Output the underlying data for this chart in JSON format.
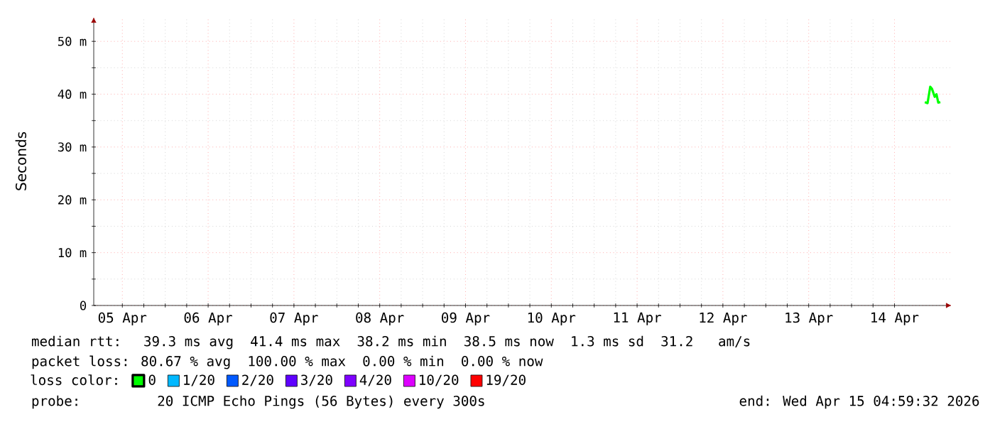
{
  "chart_data": {
    "type": "line",
    "ylabel": "Seconds",
    "x": [
      "2026-04-14T21:30",
      "2026-04-14T22:15",
      "2026-04-14T23:00",
      "2026-04-14T23:30",
      "2026-04-15T00:15",
      "2026-04-15T00:45",
      "2026-04-15T01:15",
      "2026-04-15T01:50"
    ],
    "series": [
      {
        "name": "0",
        "color": "#00ff00",
        "values": [
          38.5,
          38.3,
          41.4,
          41.0,
          39.5,
          40.0,
          38.4,
          38.5
        ]
      },
      {
        "name": "1/20",
        "color": "#00b8ff",
        "values": [
          null,
          null,
          null,
          null,
          null,
          null,
          null,
          null
        ]
      },
      {
        "name": "2/20",
        "color": "#0059ff",
        "values": [
          null,
          null,
          null,
          null,
          null,
          null,
          null,
          null
        ]
      },
      {
        "name": "3/20",
        "color": "#5e00ff",
        "values": [
          null,
          null,
          null,
          null,
          null,
          null,
          null,
          null
        ]
      },
      {
        "name": "4/20",
        "color": "#7e00ff",
        "values": [
          null,
          null,
          null,
          null,
          null,
          null,
          null,
          null
        ]
      },
      {
        "name": "10/20",
        "color": "#dd00ff",
        "values": [
          null,
          null,
          null,
          null,
          null,
          null,
          null,
          null
        ]
      },
      {
        "name": "19/20",
        "color": "#ff0000",
        "values": [
          null,
          null,
          null,
          null,
          null,
          null,
          null,
          null
        ]
      }
    ],
    "legend_title": "loss color:",
    "legend": "bottom",
    "xlim": [
      "2026-04-05T05:00",
      "2026-04-15T05:00"
    ],
    "xticks": [
      {
        "value": "2026-04-05T13:00",
        "label": "05 Apr"
      },
      {
        "value": "2026-04-06T13:00",
        "label": "06 Apr"
      },
      {
        "value": "2026-04-07T13:00",
        "label": "07 Apr"
      },
      {
        "value": "2026-04-08T13:00",
        "label": "08 Apr"
      },
      {
        "value": "2026-04-09T13:00",
        "label": "09 Apr"
      },
      {
        "value": "2026-04-10T13:00",
        "label": "10 Apr"
      },
      {
        "value": "2026-04-11T13:00",
        "label": "11 Apr"
      },
      {
        "value": "2026-04-12T13:00",
        "label": "12 Apr"
      },
      {
        "value": "2026-04-13T13:00",
        "label": "13 Apr"
      },
      {
        "value": "2026-04-14T13:00",
        "label": "14 Apr"
      }
    ],
    "ylim": [
      0,
      54.6
    ],
    "yticks": [
      0,
      {
        "value": 10,
        "label": "10 m"
      },
      {
        "value": 20,
        "label": "20 m"
      },
      {
        "value": 30,
        "label": "30 m"
      },
      {
        "value": 40,
        "label": "40 m"
      },
      {
        "value": 50,
        "label": "50 m"
      }
    ],
    "grid": true,
    "annotations": [
      "median rtt:  39.3 ms avg  41.4 ms max  38.2 ms min  38.5 ms now  1.3 ms sd  31.2   am/s",
      "packet loss: 80.67 % avg  100.00 % max  0.00 % min  0.00 % now",
      "probe:       20 ICMP Echo Pings (56 Bytes) every 300s",
      "end: Wed Apr 15 04:59:32 2026"
    ]
  }
}
